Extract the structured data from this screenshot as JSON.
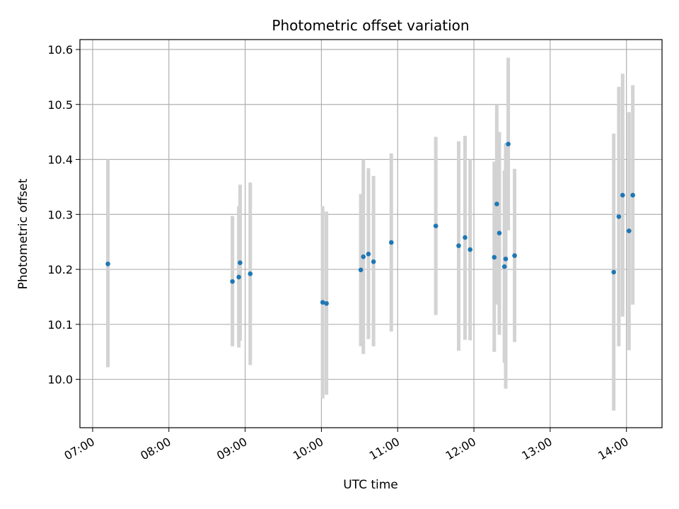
{
  "chart_data": {
    "type": "scatter",
    "title": "Photometric offset variation",
    "xlabel": "UTC time",
    "ylabel": "Photometric offset",
    "x_ticks": [
      "07:00",
      "08:00",
      "09:00",
      "10:00",
      "11:00",
      "12:00",
      "13:00",
      "14:00"
    ],
    "y_ticks": [
      "10.0",
      "10.1",
      "10.2",
      "10.3",
      "10.4",
      "10.5",
      "10.6"
    ],
    "xlim": [
      "06:50",
      "14:28"
    ],
    "ylim": [
      9.912,
      10.618
    ],
    "grid": true,
    "marker_color": "#1f77b4",
    "errorbar_color": "#d3d3d3",
    "points": [
      {
        "time": "07:12",
        "value": 10.21,
        "low": 10.022,
        "high": 10.4
      },
      {
        "time": "08:50",
        "value": 10.178,
        "low": 10.06,
        "high": 10.297
      },
      {
        "time": "08:55",
        "value": 10.186,
        "low": 10.058,
        "high": 10.315
      },
      {
        "time": "08:56",
        "value": 10.212,
        "low": 10.07,
        "high": 10.354
      },
      {
        "time": "09:04",
        "value": 10.192,
        "low": 10.026,
        "high": 10.358
      },
      {
        "time": "10:01",
        "value": 10.14,
        "low": 9.965,
        "high": 10.315
      },
      {
        "time": "10:04",
        "value": 10.138,
        "low": 9.972,
        "high": 10.305
      },
      {
        "time": "10:31",
        "value": 10.199,
        "low": 10.06,
        "high": 10.337
      },
      {
        "time": "10:33",
        "value": 10.223,
        "low": 10.046,
        "high": 10.4
      },
      {
        "time": "10:37",
        "value": 10.228,
        "low": 10.073,
        "high": 10.384
      },
      {
        "time": "10:41",
        "value": 10.214,
        "low": 10.06,
        "high": 10.37
      },
      {
        "time": "10:55",
        "value": 10.249,
        "low": 10.087,
        "high": 10.411
      },
      {
        "time": "11:30",
        "value": 10.279,
        "low": 10.117,
        "high": 10.441
      },
      {
        "time": "11:48",
        "value": 10.243,
        "low": 10.052,
        "high": 10.433
      },
      {
        "time": "11:53",
        "value": 10.258,
        "low": 10.072,
        "high": 10.443
      },
      {
        "time": "11:57",
        "value": 10.236,
        "low": 10.071,
        "high": 10.4
      },
      {
        "time": "12:16",
        "value": 10.222,
        "low": 10.05,
        "high": 10.396
      },
      {
        "time": "12:18",
        "value": 10.319,
        "low": 10.136,
        "high": 10.5
      },
      {
        "time": "12:20",
        "value": 10.266,
        "low": 10.081,
        "high": 10.45
      },
      {
        "time": "12:24",
        "value": 10.205,
        "low": 10.03,
        "high": 10.38
      },
      {
        "time": "12:25",
        "value": 10.219,
        "low": 9.983,
        "high": 10.43
      },
      {
        "time": "12:27",
        "value": 10.428,
        "low": 10.271,
        "high": 10.585
      },
      {
        "time": "12:32",
        "value": 10.225,
        "low": 10.068,
        "high": 10.383
      },
      {
        "time": "13:50",
        "value": 10.195,
        "low": 9.943,
        "high": 10.447
      },
      {
        "time": "13:54",
        "value": 10.296,
        "low": 10.06,
        "high": 10.532
      },
      {
        "time": "13:57",
        "value": 10.335,
        "low": 10.114,
        "high": 10.556
      },
      {
        "time": "14:02",
        "value": 10.27,
        "low": 10.053,
        "high": 10.486
      },
      {
        "time": "14:05",
        "value": 10.335,
        "low": 10.136,
        "high": 10.535
      }
    ]
  }
}
